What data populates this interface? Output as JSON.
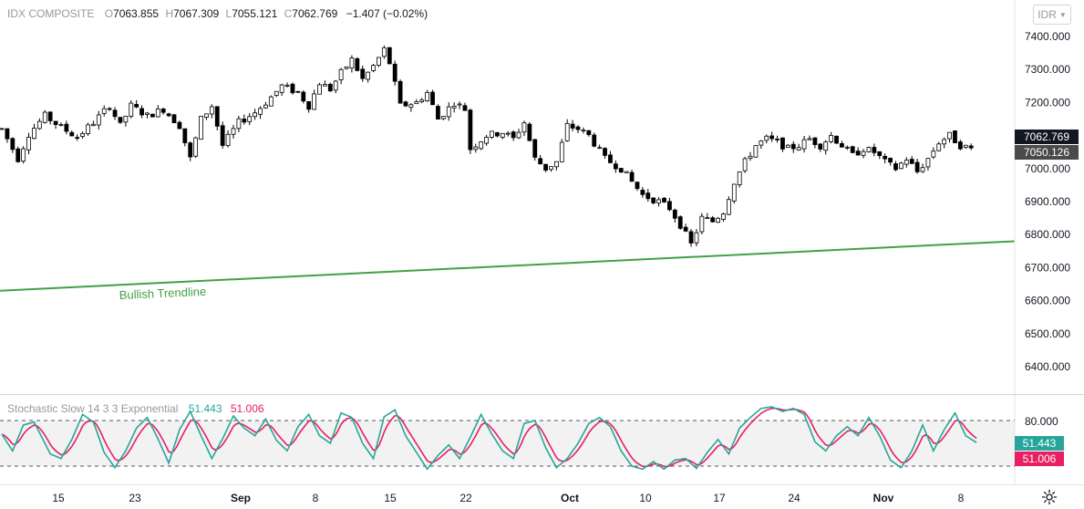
{
  "instrument": {
    "name": "IDX COMPOSITE",
    "o_label": "O",
    "open": "7063.855",
    "h_label": "H",
    "high": "7067.309",
    "l_label": "L",
    "low": "7055.121",
    "c_label": "C",
    "close": "7062.769",
    "change": "−1.407 (−0.02%)"
  },
  "currency_button": {
    "label": "IDR",
    "icon": "chevron-down-icon"
  },
  "settings_icon": "gear-icon",
  "colors": {
    "trendline": "#43a047",
    "stoch_k": "#26a69a",
    "stoch_d": "#e91e63",
    "last_price_badge": "#131722",
    "prev_badge": "#4a4a4a",
    "band_fill": "#f2f2f2"
  },
  "chart_data": [
    {
      "type": "candlestick",
      "price_axis": {
        "ticks": [
          "7400.000",
          "7300.000",
          "7200.000",
          "7100.000",
          "7000.000",
          "6900.000",
          "6800.000",
          "6700.000",
          "6600.000",
          "6500.000",
          "6400.000"
        ],
        "range": [
          6320,
          7430
        ]
      },
      "last_price_label": "7062.769",
      "secondary_price_label": "7050.126",
      "time_axis": {
        "labels": [
          "15",
          "23",
          "Sep",
          "8",
          "15",
          "22",
          "Oct",
          "10",
          "17",
          "24",
          "Nov",
          "8"
        ]
      },
      "anchors": [
        [
          0,
          7120
        ],
        [
          3,
          7030
        ],
        [
          5,
          7105
        ],
        [
          8,
          7160
        ],
        [
          11,
          7125
        ],
        [
          14,
          7095
        ],
        [
          17,
          7140
        ],
        [
          20,
          7190
        ],
        [
          22,
          7130
        ],
        [
          24,
          7190
        ],
        [
          27,
          7160
        ],
        [
          30,
          7180
        ],
        [
          33,
          7130
        ],
        [
          35,
          7030
        ],
        [
          37,
          7150
        ],
        [
          39,
          7190
        ],
        [
          41,
          7070
        ],
        [
          44,
          7140
        ],
        [
          47,
          7170
        ],
        [
          49,
          7200
        ],
        [
          52,
          7250
        ],
        [
          55,
          7230
        ],
        [
          57,
          7190
        ],
        [
          59,
          7260
        ],
        [
          61,
          7240
        ],
        [
          63,
          7290
        ],
        [
          65,
          7330
        ],
        [
          67,
          7270
        ],
        [
          69,
          7310
        ],
        [
          71,
          7360
        ],
        [
          72,
          7320
        ],
        [
          74,
          7190
        ],
        [
          77,
          7200
        ],
        [
          79,
          7230
        ],
        [
          81,
          7150
        ],
        [
          84,
          7200
        ],
        [
          86,
          7180
        ],
        [
          87,
          7060
        ],
        [
          90,
          7100
        ],
        [
          93,
          7110
        ],
        [
          95,
          7090
        ],
        [
          97,
          7140
        ],
        [
          99,
          7030
        ],
        [
          101,
          7000
        ],
        [
          103,
          7020
        ],
        [
          105,
          7130
        ],
        [
          107,
          7120
        ],
        [
          109,
          7100
        ],
        [
          112,
          7030
        ],
        [
          115,
          7000
        ],
        [
          117,
          6960
        ],
        [
          119,
          6920
        ],
        [
          122,
          6900
        ],
        [
          124,
          6880
        ],
        [
          126,
          6830
        ],
        [
          128,
          6770
        ],
        [
          130,
          6850
        ],
        [
          132,
          6840
        ],
        [
          134,
          6870
        ],
        [
          136,
          6960
        ],
        [
          138,
          7020
        ],
        [
          140,
          7070
        ],
        [
          142,
          7090
        ],
        [
          144,
          7080
        ],
        [
          146,
          7060
        ],
        [
          148,
          7070
        ],
        [
          150,
          7090
        ],
        [
          152,
          7070
        ],
        [
          154,
          7100
        ],
        [
          156,
          7070
        ],
        [
          158,
          7040
        ],
        [
          160,
          7060
        ],
        [
          162,
          7050
        ],
        [
          164,
          7020
        ],
        [
          166,
          7000
        ],
        [
          168,
          7030
        ],
        [
          170,
          6990
        ],
        [
          172,
          7030
        ],
        [
          174,
          7080
        ],
        [
          176,
          7100
        ],
        [
          178,
          7070
        ],
        [
          180,
          7060
        ]
      ],
      "high_marker": "7374",
      "low_marker": "6748"
    },
    {
      "type": "line",
      "title": "Bullish Trendline",
      "series": [
        {
          "name": "Bullish Trendline",
          "x": [
            "start",
            "end"
          ],
          "values": [
            6630,
            6780
          ]
        }
      ]
    },
    {
      "type": "line",
      "title": "Stochastic Slow 14 3 3 Exponential",
      "k_value": "51.443",
      "d_value": "51.006",
      "axis_label": "80.000",
      "upper_band": 80,
      "lower_band": 20,
      "range": [
        0,
        100
      ],
      "anchors": [
        [
          0,
          62
        ],
        [
          2,
          40
        ],
        [
          4,
          74
        ],
        [
          6,
          78
        ],
        [
          9,
          36
        ],
        [
          11,
          30
        ],
        [
          13,
          55
        ],
        [
          15,
          88
        ],
        [
          17,
          78
        ],
        [
          19,
          38
        ],
        [
          21,
          18
        ],
        [
          23,
          40
        ],
        [
          25,
          70
        ],
        [
          27,
          84
        ],
        [
          29,
          56
        ],
        [
          31,
          24
        ],
        [
          33,
          68
        ],
        [
          35,
          92
        ],
        [
          37,
          60
        ],
        [
          39,
          30
        ],
        [
          41,
          56
        ],
        [
          43,
          86
        ],
        [
          45,
          70
        ],
        [
          47,
          60
        ],
        [
          49,
          82
        ],
        [
          51,
          54
        ],
        [
          53,
          40
        ],
        [
          55,
          72
        ],
        [
          57,
          88
        ],
        [
          59,
          60
        ],
        [
          61,
          50
        ],
        [
          63,
          90
        ],
        [
          65,
          84
        ],
        [
          67,
          50
        ],
        [
          69,
          30
        ],
        [
          71,
          85
        ],
        [
          73,
          94
        ],
        [
          75,
          60
        ],
        [
          77,
          38
        ],
        [
          79,
          16
        ],
        [
          81,
          34
        ],
        [
          83,
          48
        ],
        [
          85,
          30
        ],
        [
          87,
          58
        ],
        [
          89,
          88
        ],
        [
          91,
          62
        ],
        [
          93,
          40
        ],
        [
          95,
          30
        ],
        [
          97,
          76
        ],
        [
          99,
          80
        ],
        [
          101,
          44
        ],
        [
          103,
          18
        ],
        [
          105,
          30
        ],
        [
          107,
          50
        ],
        [
          109,
          76
        ],
        [
          111,
          84
        ],
        [
          113,
          72
        ],
        [
          115,
          40
        ],
        [
          117,
          20
        ],
        [
          119,
          16
        ],
        [
          121,
          26
        ],
        [
          123,
          16
        ],
        [
          125,
          28
        ],
        [
          127,
          30
        ],
        [
          129,
          17
        ],
        [
          131,
          38
        ],
        [
          133,
          55
        ],
        [
          135,
          36
        ],
        [
          137,
          70
        ],
        [
          139,
          84
        ],
        [
          141,
          96
        ],
        [
          143,
          98
        ],
        [
          145,
          92
        ],
        [
          147,
          96
        ],
        [
          149,
          88
        ],
        [
          151,
          52
        ],
        [
          153,
          40
        ],
        [
          155,
          60
        ],
        [
          157,
          72
        ],
        [
          159,
          60
        ],
        [
          161,
          84
        ],
        [
          163,
          60
        ],
        [
          165,
          28
        ],
        [
          167,
          18
        ],
        [
          169,
          40
        ],
        [
          171,
          74
        ],
        [
          173,
          40
        ],
        [
          175,
          68
        ],
        [
          177,
          90
        ],
        [
          179,
          60
        ],
        [
          181,
          51
        ]
      ]
    }
  ]
}
